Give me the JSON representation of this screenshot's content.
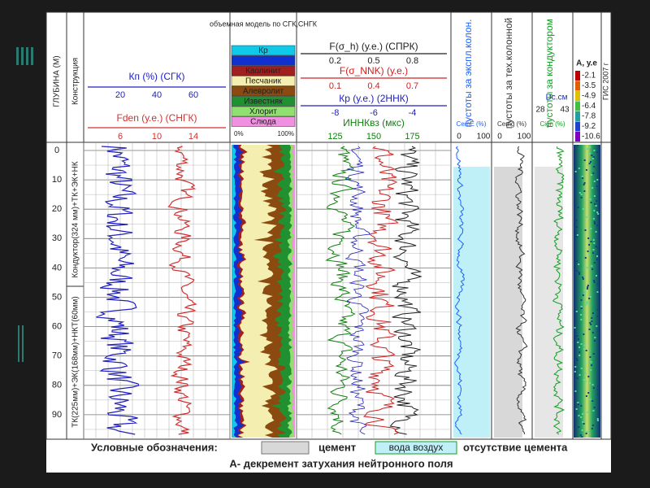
{
  "slide": {
    "depth_axis": {
      "label": "ГЛУБИНА (М)",
      "ticks": [
        0,
        10,
        20,
        30,
        40,
        50,
        60,
        70,
        80,
        90
      ],
      "lim": [
        -3,
        98
      ]
    },
    "construction": {
      "label": "Конструкция",
      "upper": "Кондуктор(324 мм)+ТК+ЭК+НК",
      "lower": "ТК(225мм)+ЭК(168мм)+НКТ(60мм)"
    },
    "track1": {
      "scales": [
        {
          "label": "Кп (%)  (СГК)",
          "ticks": [
            20,
            40,
            60
          ],
          "color": "#2020c0"
        },
        {
          "label": "Fden (у.е.) (СНГК)",
          "ticks": [
            6,
            10,
            14
          ],
          "color": "#d03030"
        }
      ]
    },
    "lithology": {
      "title": "объемная модель по СГК,СНГК",
      "items": [
        {
          "label": "Кр",
          "color": "#10c8e8"
        },
        {
          "color": "#1030d0"
        },
        {
          "label": "Каолинит",
          "color": "#a02020"
        },
        {
          "label": "Песчаник",
          "color": "#f4eeb0"
        },
        {
          "label": "Алевролит",
          "color": "#8a4a10"
        },
        {
          "label": "Известняк",
          "color": "#209030"
        },
        {
          "label": "Хлорит",
          "color": "#90e070"
        },
        {
          "label": "Слюда",
          "color": "#f090e0"
        }
      ],
      "scale": [
        "0%",
        "100%"
      ]
    },
    "track3": {
      "scales": [
        {
          "label": "F(σ_h) (у.е.) (СПРК)",
          "ticks": [
            0.2,
            0.5,
            0.8
          ],
          "color": "#202020"
        },
        {
          "label": "F(σ_NNK) (у.е.)",
          "ticks": [
            0.1,
            0.4,
            0.7
          ],
          "color": "#d02020"
        },
        {
          "label": "Кр (у.е.) (2ННК)",
          "ticks": [
            -8,
            -6,
            -4
          ],
          "color": "#2020c0"
        },
        {
          "label": "ИННКвз (мкс)",
          "ticks": [
            125,
            150,
            175
          ],
          "color": "#108010"
        }
      ]
    },
    "voids": [
      {
        "title": "пустоты за экспл.колон.",
        "scale": "CemE (%)",
        "ticks": [
          0,
          100
        ],
        "color": "#1a60ff"
      },
      {
        "title": "пустоты за тех.колонной",
        "scale": "Cemg (%)",
        "ticks": [
          0,
          100
        ],
        "color": "#333333"
      },
      {
        "title": "пустоты за кондуктором",
        "scale": "Cign (%)",
        "scale2": "Dc.см",
        "ticks": [
          28,
          43
        ],
        "color": "#10a020"
      }
    ],
    "decrement": {
      "title": "А, у.е",
      "ticks": [
        -2.1,
        -3.5,
        -4.9,
        -6.4,
        -7.8,
        -9.2,
        -10.6
      ]
    },
    "year": "ГИС 2007 г",
    "legend": {
      "title": "Условные обозначения:",
      "cement": "цемент",
      "water_air": "вода воздух",
      "no_cement": "отсутствие цемента",
      "note": "А- декремент затухания нейтронного поля"
    }
  }
}
